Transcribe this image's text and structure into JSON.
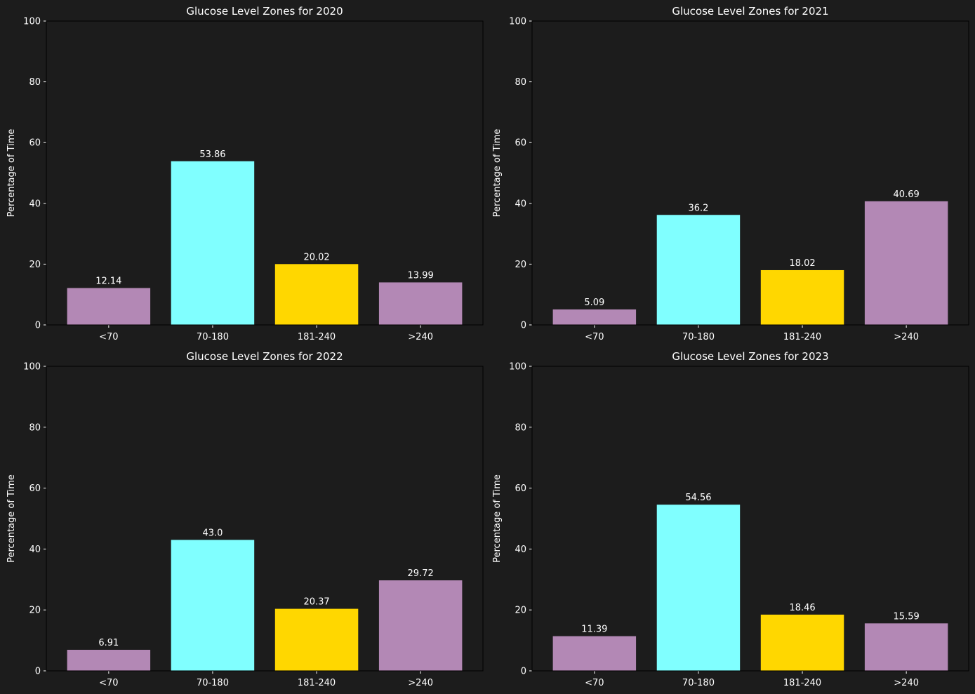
{
  "chart_data": [
    {
      "type": "bar",
      "title": "Glucose Level Zones for 2020",
      "xlabel": "",
      "ylabel": "Percentage of Time",
      "ylim": [
        0,
        100
      ],
      "yticks": [
        "0",
        "20",
        "40",
        "60",
        "80",
        "100"
      ],
      "categories": [
        "<70",
        "70-180",
        "181-240",
        ">240"
      ],
      "values": [
        12.14,
        53.86,
        20.02,
        13.99
      ],
      "value_labels": [
        "12.14",
        "53.86",
        "20.02",
        "13.99"
      ],
      "colors": [
        "#b388b5",
        "#80ffff",
        "#ffd700",
        "#b388b5"
      ]
    },
    {
      "type": "bar",
      "title": "Glucose Level Zones for 2021",
      "xlabel": "",
      "ylabel": "Percentage of Time",
      "ylim": [
        0,
        100
      ],
      "yticks": [
        "0",
        "20",
        "40",
        "60",
        "80",
        "100"
      ],
      "categories": [
        "<70",
        "70-180",
        "181-240",
        ">240"
      ],
      "values": [
        5.09,
        36.2,
        18.02,
        40.69
      ],
      "value_labels": [
        "5.09",
        "36.2",
        "18.02",
        "40.69"
      ],
      "colors": [
        "#b388b5",
        "#80ffff",
        "#ffd700",
        "#b388b5"
      ]
    },
    {
      "type": "bar",
      "title": "Glucose Level Zones for 2022",
      "xlabel": "",
      "ylabel": "Percentage of Time",
      "ylim": [
        0,
        100
      ],
      "yticks": [
        "0",
        "20",
        "40",
        "60",
        "80",
        "100"
      ],
      "categories": [
        "<70",
        "70-180",
        "181-240",
        ">240"
      ],
      "values": [
        6.91,
        43.0,
        20.37,
        29.72
      ],
      "value_labels": [
        "6.91",
        "43.0",
        "20.37",
        "29.72"
      ],
      "colors": [
        "#b388b5",
        "#80ffff",
        "#ffd700",
        "#b388b5"
      ]
    },
    {
      "type": "bar",
      "title": "Glucose Level Zones for 2023",
      "xlabel": "",
      "ylabel": "Percentage of Time",
      "ylim": [
        0,
        100
      ],
      "yticks": [
        "0",
        "20",
        "40",
        "60",
        "80",
        "100"
      ],
      "categories": [
        "<70",
        "70-180",
        "181-240",
        ">240"
      ],
      "values": [
        11.39,
        54.56,
        18.46,
        15.59
      ],
      "value_labels": [
        "11.39",
        "54.56",
        "18.46",
        "15.59"
      ],
      "colors": [
        "#b388b5",
        "#80ffff",
        "#ffd700",
        "#b388b5"
      ]
    }
  ],
  "theme": {
    "background": "#1c1c1c",
    "text": "#ffffff",
    "axis": "#000000"
  }
}
